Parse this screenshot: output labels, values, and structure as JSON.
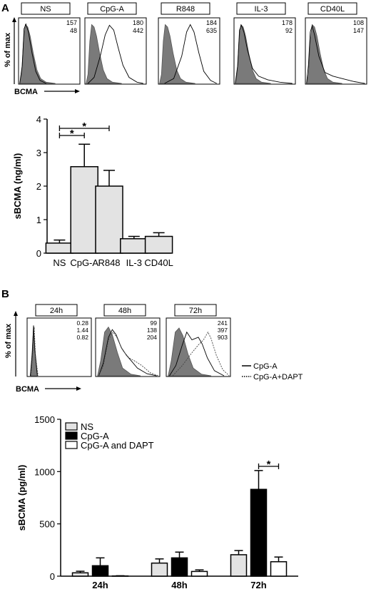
{
  "panel_a": {
    "label": "A",
    "histograms": [
      {
        "title": "NS",
        "stats": [
          "157",
          "48"
        ]
      },
      {
        "title": "CpG-A",
        "stats": [
          "180",
          "442"
        ]
      },
      {
        "title": "R848",
        "stats": [
          "184",
          "635"
        ]
      },
      {
        "title": "IL-3",
        "stats": [
          "178",
          "92"
        ]
      },
      {
        "title": "CD40L",
        "stats": [
          "108",
          "147"
        ]
      }
    ],
    "y_axis_label": "% of max",
    "x_axis_label": "BCMA"
  },
  "panel_b": {
    "label": "B",
    "histograms": [
      {
        "title": "24h",
        "stats": [
          "0.28",
          "1.44",
          "0.82"
        ]
      },
      {
        "title": "48h",
        "stats": [
          "99",
          "138",
          "204"
        ]
      },
      {
        "title": "72h",
        "stats": [
          "241",
          "397",
          "903"
        ]
      }
    ],
    "y_axis_label": "% of max",
    "x_axis_label": "BCMA",
    "line_legend": [
      "CpG-A",
      "CpG-A+DAPT"
    ]
  },
  "chart_data": [
    {
      "type": "bar",
      "ylabel": "sBCMA (ng/ml)",
      "categories": [
        "NS",
        "CpG-A",
        "R848",
        "IL-3",
        "CD40L"
      ],
      "values": [
        0.3,
        2.58,
        2.0,
        0.43,
        0.5
      ],
      "errors": [
        0.09,
        0.67,
        0.47,
        0.07,
        0.11
      ],
      "ylim": [
        0,
        4
      ],
      "yticks": [
        0,
        1,
        2,
        3,
        4
      ],
      "significance": [
        {
          "from": "NS",
          "to": "CpG-A",
          "label": "*"
        },
        {
          "from": "NS",
          "to": "R848",
          "label": "*"
        }
      ]
    },
    {
      "type": "bar",
      "ylabel": "sBCMA (pg/ml)",
      "categories": [
        "24h",
        "48h",
        "72h"
      ],
      "ylim": [
        0,
        1500
      ],
      "yticks": [
        0,
        500,
        1000,
        1500
      ],
      "legend_position": "top-left",
      "series": [
        {
          "name": "NS",
          "color": "#e3e3e3",
          "values": [
            32,
            125,
            205
          ],
          "errors": [
            15,
            40,
            40
          ]
        },
        {
          "name": "CpG-A",
          "color": "#000000",
          "values": [
            100,
            175,
            830
          ],
          "errors": [
            75,
            55,
            180
          ]
        },
        {
          "name": "CpG-A and DAPT",
          "color": "#ffffff",
          "values": [
            2,
            45,
            138
          ],
          "errors": [
            2,
            15,
            45
          ]
        }
      ],
      "significance": [
        {
          "category": "72h",
          "from": "CpG-A",
          "to": "CpG-A and DAPT",
          "label": "*"
        }
      ]
    }
  ]
}
